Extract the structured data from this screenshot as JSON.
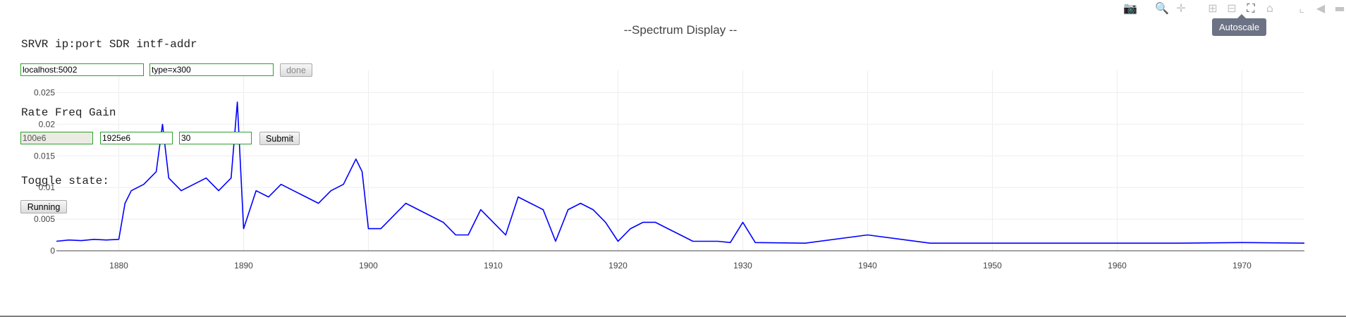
{
  "chart_data": {
    "type": "line",
    "title": "--Spectrum Display --",
    "xlabel": "",
    "ylabel": "",
    "xlim": [
      1875,
      1975
    ],
    "ylim": [
      0,
      0.0285
    ],
    "x_ticks": [
      1880,
      1890,
      1900,
      1910,
      1920,
      1930,
      1940,
      1950,
      1960,
      1970
    ],
    "y_ticks": [
      0,
      0.005,
      0.01,
      0.015,
      0.02,
      0.025
    ],
    "y_tick_labels": [
      "0",
      "0.005",
      "0.01",
      "0.015",
      "0.02",
      "0.025"
    ],
    "grid": true,
    "legend": "none",
    "series": [
      {
        "color": "#0000ff",
        "x": [
          1875,
          1876,
          1877,
          1878,
          1879,
          1880,
          1880.5,
          1881,
          1882,
          1883,
          1883.5,
          1884,
          1885,
          1886,
          1887,
          1888,
          1889,
          1889.5,
          1890,
          1891,
          1892,
          1893,
          1894,
          1895,
          1896,
          1897,
          1898,
          1899,
          1899.5,
          1900,
          1901,
          1902,
          1903,
          1904,
          1905,
          1906,
          1907,
          1908,
          1909,
          1910,
          1911,
          1912,
          1913,
          1914,
          1915,
          1916,
          1917,
          1918,
          1919,
          1920,
          1921,
          1922,
          1923,
          1924,
          1925,
          1926,
          1927,
          1928,
          1929,
          1930,
          1931,
          1935,
          1940,
          1945,
          1950,
          1955,
          1960,
          1965,
          1970,
          1975
        ],
        "y": [
          0.0015,
          0.0017,
          0.0016,
          0.0018,
          0.0017,
          0.0018,
          0.0075,
          0.0095,
          0.0105,
          0.0125,
          0.02,
          0.0115,
          0.0095,
          0.0105,
          0.0115,
          0.0095,
          0.0115,
          0.0235,
          0.0035,
          0.0095,
          0.0085,
          0.0105,
          0.0095,
          0.0085,
          0.0075,
          0.0095,
          0.0105,
          0.0145,
          0.0125,
          0.0035,
          0.0035,
          0.0055,
          0.0075,
          0.0065,
          0.0055,
          0.0045,
          0.0025,
          0.0025,
          0.0065,
          0.0045,
          0.0025,
          0.0085,
          0.0075,
          0.0065,
          0.0015,
          0.0065,
          0.0075,
          0.0065,
          0.0045,
          0.0015,
          0.0035,
          0.0045,
          0.0045,
          0.0035,
          0.0025,
          0.0015,
          0.0015,
          0.0015,
          0.0013,
          0.0045,
          0.0013,
          0.0012,
          0.0025,
          0.0012,
          0.0012,
          0.0012,
          0.0012,
          0.0012,
          0.0013,
          0.0012
        ]
      }
    ]
  },
  "modebar": {
    "icons": [
      "camera-icon",
      "zoom-icon",
      "pan-icon",
      "zoom-in-icon",
      "zoom-out-icon",
      "autoscale-icon",
      "home-icon",
      "spike-lines-icon",
      "hover-closest-icon",
      "hover-compare-icon"
    ],
    "tooltip": "Autoscale"
  },
  "server_form": {
    "label": "SRVR ip:port SDR intf-addr",
    "server_value": "localhost:5002",
    "sdr_value": "type=x300",
    "done_label": "done"
  },
  "radio_form": {
    "label": "Rate Freq Gain",
    "rate_value": "100e6",
    "freq_value": "1925e6",
    "gain_value": "30",
    "submit_label": "Submit"
  },
  "toggle_form": {
    "label": "Toggle state:",
    "button_label": "Running"
  }
}
